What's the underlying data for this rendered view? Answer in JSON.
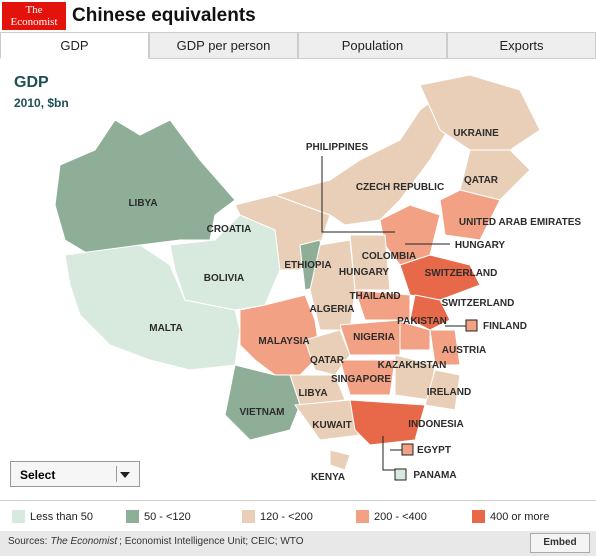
{
  "header": {
    "logo": [
      "The",
      "Economist"
    ],
    "title": "Chinese equivalents"
  },
  "tabs": [
    "GDP",
    "GDP per person",
    "Population",
    "Exports"
  ],
  "map": {
    "title": "GDP",
    "subtitle": "2010, $bn",
    "labels": [
      "UKRAINE",
      "QATAR",
      "PHILIPPINES",
      "CZECH REPUBLIC",
      "LIBYA",
      "UNITED ARAB EMIRATES",
      "CROATIA",
      "HUNGARY",
      "COLOMBIA",
      "ETHIOPIA",
      "HUNGARY",
      "SWITZERLAND",
      "BOLIVIA",
      "THAILAND",
      "SWITZERLAND",
      "ALGERIA",
      "PAKISTAN",
      "FINLAND",
      "MALTA",
      "MALAYSIA",
      "NIGERIA",
      "AUSTRIA",
      "QATAR",
      "KAZAKHSTAN",
      "SINGAPORE",
      "LIBYA",
      "IRELAND",
      "VIETNAM",
      "KUWAIT",
      "INDONESIA",
      "EGYPT",
      "PANAMA",
      "KENYA"
    ]
  },
  "select": "Select",
  "legend": [
    {
      "label": "Less than 50",
      "color": "#d8e9de"
    },
    {
      "label": "50 - <120",
      "color": "#8fae98"
    },
    {
      "label": "120 - <200",
      "color": "#e9cfb7"
    },
    {
      "label": "200 - <400",
      "color": "#f3a184"
    },
    {
      "label": "400 or more",
      "color": "#e8684a"
    }
  ],
  "footer": {
    "prefix": "Sources:",
    "source_italic": "The Economist",
    "rest": "; Economist Intelligence Unit; CEIC; WTO",
    "embed": "Embed"
  }
}
